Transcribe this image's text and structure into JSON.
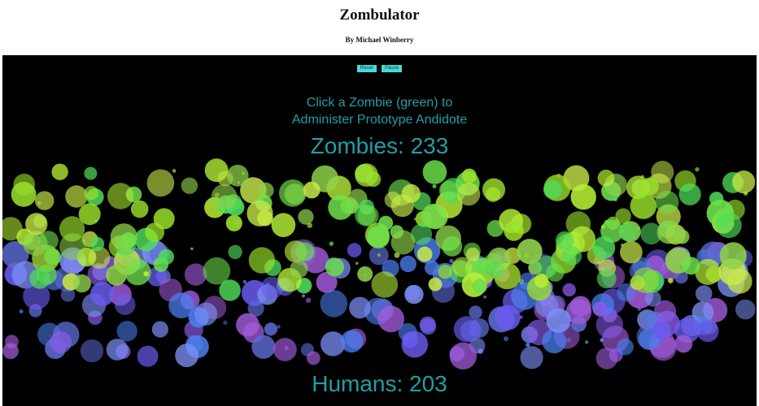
{
  "page": {
    "title": "Zombulator",
    "byline": "By Michael Winberry"
  },
  "controls": {
    "reset_label": "Reset",
    "pause_label": "Pause"
  },
  "instruction": {
    "line1": "Click a Zombie (green) to",
    "line2": "Administer Prototype Andidote"
  },
  "counts": {
    "zombies_text": "Zombies: 233",
    "humans_text": "Humans: 203",
    "zombies": 233,
    "humans": 203
  },
  "colors": {
    "background": "#000000",
    "counter_text": "#1f9fa5",
    "button": "#48d9d9",
    "zombie_palette": [
      "#9be22b",
      "#b6ef36",
      "#6fe04b",
      "#4fdc5a",
      "#c8e84a",
      "#8fd34a"
    ],
    "human_palette": [
      "#6a5cf0",
      "#8a5ce8",
      "#4b7ff0",
      "#7b8ff5",
      "#a05ad8",
      "#5a6ad0"
    ]
  }
}
